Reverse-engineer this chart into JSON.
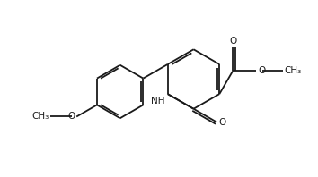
{
  "bg_color": "#ffffff",
  "line_color": "#1a1a1a",
  "lw": 1.3,
  "fs": 7.5,
  "fig_width": 3.54,
  "fig_height": 1.98,
  "dpi": 100,
  "xlim": [
    0,
    9
  ],
  "ylim": [
    0,
    5.5
  ]
}
